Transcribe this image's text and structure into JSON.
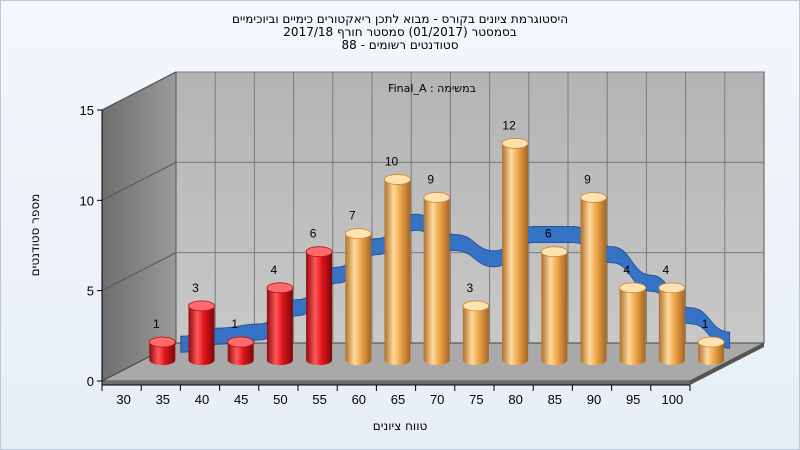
{
  "title": {
    "line1": "היסטוגרמת ציונים בקורס - מבוא לתכן ריאקטורים כימיים וביוכימיים",
    "line2": "בסמסטר  (01/2017)  סמסטר חורף  2017/18",
    "line3": "סטודנטים רשומים - 88"
  },
  "chart_data": {
    "type": "bar",
    "title": "היסטוגרמת ציונים בקורס - מבוא לתכן ריאקטורים כימיים וביוכימיים",
    "series_label": "Final_A : במשימה",
    "xlabel": "טווח ציונים",
    "ylabel": "מספר סטודנטים",
    "ylim": [
      0,
      15
    ],
    "yticks": [
      "0",
      "5",
      "10",
      "15"
    ],
    "categories": [
      "30",
      "35",
      "40",
      "45",
      "50",
      "55",
      "60",
      "65",
      "70",
      "75",
      "80",
      "85",
      "90",
      "95",
      "100"
    ],
    "values": [
      1,
      3,
      1,
      4,
      6,
      7,
      10,
      9,
      3,
      12,
      6,
      9,
      4,
      4,
      1
    ],
    "bar_colors": [
      "#e0161c",
      "#e0161c",
      "#e0161c",
      "#e0161c",
      "#e0161c",
      "#f0a84a",
      "#f0a84a",
      "#f0a84a",
      "#f0a84a",
      "#f0a84a",
      "#f0a84a",
      "#f0a84a",
      "#f0a84a",
      "#f0a84a",
      "#f0a84a"
    ],
    "curve_color": "#2f6fc6",
    "grid": true
  }
}
